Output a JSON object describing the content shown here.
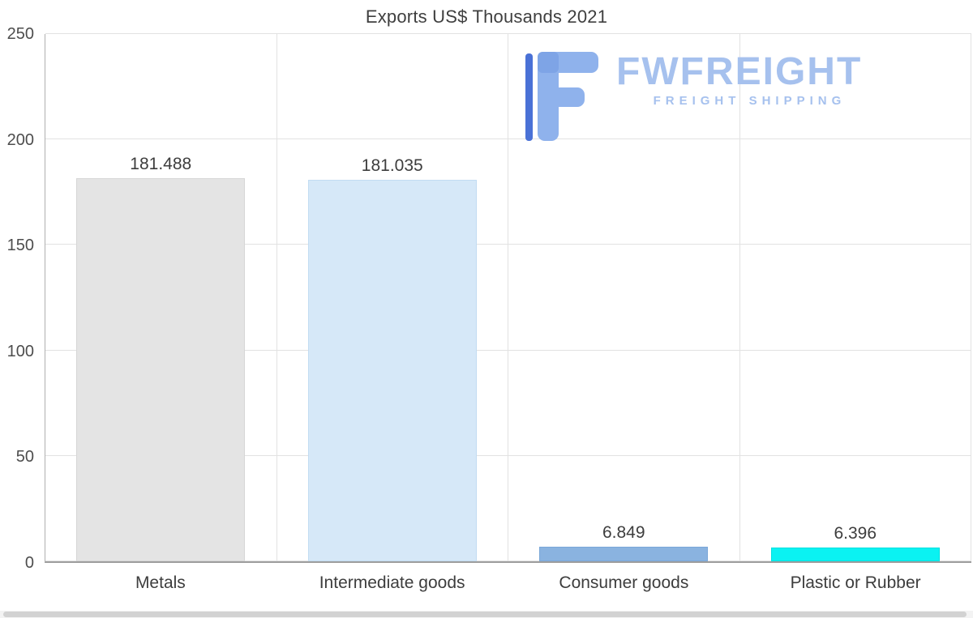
{
  "chart_data": {
    "type": "bar",
    "title": "Exports US$ Thousands 2021",
    "categories": [
      "Metals",
      "Intermediate goods",
      "Consumer goods",
      "Plastic or Rubber"
    ],
    "values": [
      181.488,
      181.035,
      6.849,
      6.396
    ],
    "value_labels": [
      "181.488",
      "181.035",
      "6.849",
      "6.396"
    ],
    "bar_colors": [
      "#e4e4e4",
      "#d6e8f8",
      "#8ab3e0",
      "#0af2f2"
    ],
    "bar_borders": [
      "#d6d6d6",
      "#c2dcf2",
      "#7aa7d8",
      "#00e0e0"
    ],
    "xlabel": "",
    "ylabel": "",
    "ylim": [
      0,
      250
    ],
    "yticks": [
      0,
      50,
      100,
      150,
      200,
      250
    ],
    "grid": true,
    "legend": false
  },
  "logo": {
    "brand": "FWFREIGHT",
    "tagline": "FREIGHT SHIPPING",
    "accent_light": "#8fb2ec",
    "accent_dark": "#4a71d6",
    "text_color": "#a6c1ee"
  }
}
